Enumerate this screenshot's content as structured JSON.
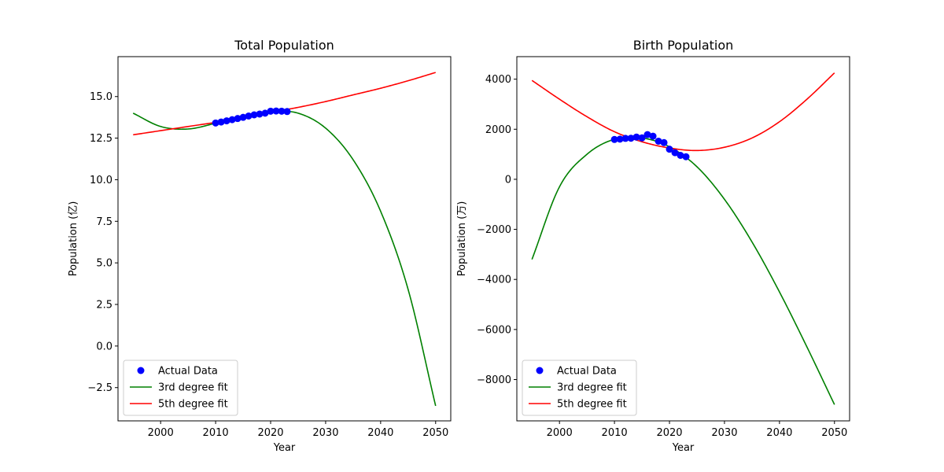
{
  "chart_data": [
    {
      "type": "line",
      "title": "Total Population",
      "xlabel": "Year",
      "ylabel": "Population (亿)",
      "xlim": [
        1992.25,
        2052.75
      ],
      "ylim": [
        -4.5,
        17.4
      ],
      "xticks": [
        2000,
        2010,
        2020,
        2030,
        2040,
        2050
      ],
      "xtick_labels": [
        "2000",
        "2010",
        "2020",
        "2030",
        "2040",
        "2050"
      ],
      "yticks": [
        -2.5,
        0.0,
        2.5,
        5.0,
        7.5,
        10.0,
        12.5,
        15.0
      ],
      "ytick_labels": [
        "−2.5",
        "0.0",
        "2.5",
        "5.0",
        "7.5",
        "10.0",
        "12.5",
        "15.0"
      ],
      "grid": false,
      "legend_position": "lower-left",
      "series": [
        {
          "name": "Actual Data",
          "kind": "scatter",
          "color": "#0000ff",
          "x": [
            2010,
            2011,
            2012,
            2013,
            2014,
            2015,
            2016,
            2017,
            2018,
            2019,
            2020,
            2021,
            2022,
            2023
          ],
          "y": [
            13.41,
            13.47,
            13.54,
            13.61,
            13.68,
            13.75,
            13.83,
            13.9,
            13.95,
            14.0,
            14.12,
            14.13,
            14.12,
            14.1
          ]
        },
        {
          "name": "3rd degree fit",
          "kind": "line",
          "color": "#008000",
          "x": [
            1995,
            2000,
            2005,
            2010,
            2015,
            2020,
            2025,
            2030,
            2035,
            2040,
            2045,
            2050
          ],
          "y": [
            14.0,
            13.2,
            13.05,
            13.4,
            13.85,
            14.1,
            14.0,
            13.1,
            11.2,
            8.1,
            3.4,
            -3.6
          ]
        },
        {
          "name": "5th degree fit",
          "kind": "line",
          "color": "#ff0000",
          "x": [
            1995,
            2000,
            2005,
            2010,
            2015,
            2020,
            2025,
            2030,
            2035,
            2040,
            2045,
            2050
          ],
          "y": [
            12.7,
            12.95,
            13.2,
            13.45,
            13.75,
            14.05,
            14.35,
            14.7,
            15.1,
            15.5,
            15.95,
            16.45
          ]
        }
      ]
    },
    {
      "type": "line",
      "title": "Birth Population",
      "xlabel": "Year",
      "ylabel": "Population (万)",
      "xlim": [
        1992.25,
        2052.75
      ],
      "ylim": [
        -9650,
        4900
      ],
      "xticks": [
        2000,
        2010,
        2020,
        2030,
        2040,
        2050
      ],
      "xtick_labels": [
        "2000",
        "2010",
        "2020",
        "2030",
        "2040",
        "2050"
      ],
      "yticks": [
        -8000,
        -6000,
        -4000,
        -2000,
        0,
        2000,
        4000
      ],
      "ytick_labels": [
        "−8000",
        "−6000",
        "−4000",
        "−2000",
        "0",
        "2000",
        "4000"
      ],
      "grid": false,
      "legend_position": "lower-left",
      "series": [
        {
          "name": "Actual Data",
          "kind": "scatter",
          "color": "#0000ff",
          "x": [
            2010,
            2011,
            2012,
            2013,
            2014,
            2015,
            2016,
            2017,
            2018,
            2019,
            2020,
            2021,
            2022,
            2023
          ],
          "y": [
            1592,
            1604,
            1635,
            1640,
            1687,
            1655,
            1786,
            1723,
            1523,
            1465,
            1202,
            1062,
            956,
            902
          ]
        },
        {
          "name": "3rd degree fit",
          "kind": "line",
          "color": "#008000",
          "x": [
            1995,
            2000,
            2005,
            2010,
            2015,
            2020,
            2025,
            2030,
            2035,
            2040,
            2045,
            2050
          ],
          "y": [
            -3200,
            -300,
            1000,
            1600,
            1650,
            1300,
            500,
            -800,
            -2500,
            -4500,
            -6700,
            -9000
          ]
        },
        {
          "name": "5th degree fit",
          "kind": "line",
          "color": "#ff0000",
          "x": [
            1995,
            2000,
            2005,
            2010,
            2015,
            2020,
            2025,
            2030,
            2035,
            2040,
            2045,
            2050
          ],
          "y": [
            3950,
            3200,
            2500,
            1900,
            1500,
            1250,
            1150,
            1280,
            1650,
            2300,
            3200,
            4250
          ]
        }
      ]
    }
  ]
}
